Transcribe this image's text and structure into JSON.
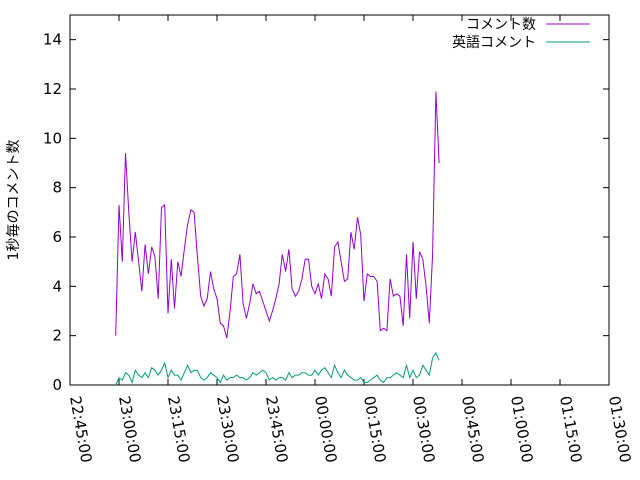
{
  "chart_data": {
    "type": "line",
    "ylabel": "1秒毎のコメント数",
    "xlabel": "",
    "title": "",
    "ylim": [
      0,
      15
    ],
    "xlim": [
      "22:45:00",
      "01:30:00"
    ],
    "y_ticks": [
      "0",
      "2",
      "4",
      "6",
      "8",
      "10",
      "12",
      "14"
    ],
    "x_ticks": [
      "22:45:00",
      "23:00:00",
      "23:15:00",
      "23:30:00",
      "23:45:00",
      "00:00:00",
      "00:15:00",
      "00:30:00",
      "00:45:00",
      "01:00:00",
      "01:15:00",
      "01:30:00"
    ],
    "grid": false,
    "legend_position": "top-right",
    "x_start": "22:59:00",
    "x_step_seconds": 60,
    "series": [
      {
        "name": "コメント数",
        "color": "#9400d3",
        "values": [
          2.0,
          7.3,
          5.0,
          9.4,
          7.0,
          5.0,
          6.2,
          5.0,
          3.8,
          5.7,
          4.5,
          5.6,
          5.2,
          3.5,
          7.2,
          7.3,
          2.9,
          5.1,
          3.1,
          5.0,
          4.4,
          5.5,
          6.5,
          7.1,
          7.0,
          5.2,
          3.6,
          3.2,
          3.5,
          4.6,
          3.9,
          3.5,
          2.5,
          2.4,
          1.9,
          3.0,
          4.4,
          4.5,
          5.3,
          3.3,
          2.7,
          3.3,
          4.1,
          3.7,
          3.8,
          3.4,
          3.0,
          2.6,
          3.0,
          3.5,
          4.1,
          5.3,
          4.6,
          5.5,
          3.9,
          3.6,
          3.8,
          4.3,
          5.1,
          5.1,
          4.0,
          3.7,
          4.1,
          3.5,
          4.5,
          4.3,
          3.6,
          5.6,
          5.8,
          5.0,
          4.2,
          4.3,
          6.2,
          5.5,
          6.8,
          6.1,
          3.4,
          4.5,
          4.4,
          4.4,
          4.2,
          2.2,
          2.3,
          2.2,
          4.3,
          3.6,
          3.7,
          3.6,
          2.4,
          5.3,
          2.7,
          5.8,
          3.5,
          5.4,
          5.1,
          4.0,
          2.5,
          5.3,
          11.9,
          9.0
        ]
      },
      {
        "name": "英語コメント",
        "color": "#009e73",
        "values": [
          0.0,
          0.3,
          0.2,
          0.5,
          0.4,
          0.1,
          0.6,
          0.4,
          0.3,
          0.5,
          0.3,
          0.7,
          0.6,
          0.4,
          0.6,
          0.9,
          0.3,
          0.6,
          0.4,
          0.4,
          0.2,
          0.5,
          0.8,
          0.5,
          0.6,
          0.6,
          0.3,
          0.2,
          0.3,
          0.5,
          0.4,
          0.3,
          0.1,
          0.4,
          0.2,
          0.3,
          0.3,
          0.4,
          0.3,
          0.3,
          0.2,
          0.3,
          0.5,
          0.4,
          0.5,
          0.6,
          0.5,
          0.2,
          0.3,
          0.2,
          0.3,
          0.3,
          0.2,
          0.5,
          0.3,
          0.4,
          0.4,
          0.5,
          0.5,
          0.4,
          0.4,
          0.6,
          0.4,
          0.6,
          0.7,
          0.5,
          0.3,
          0.8,
          0.5,
          0.3,
          0.6,
          0.4,
          0.3,
          0.2,
          0.2,
          0.3,
          0.1,
          0.1,
          0.2,
          0.3,
          0.4,
          0.2,
          0.1,
          0.3,
          0.3,
          0.4,
          0.5,
          0.4,
          0.3,
          0.8,
          0.3,
          0.6,
          0.3,
          0.4,
          0.8,
          0.6,
          0.4,
          1.1,
          1.3,
          1.0
        ]
      }
    ]
  }
}
